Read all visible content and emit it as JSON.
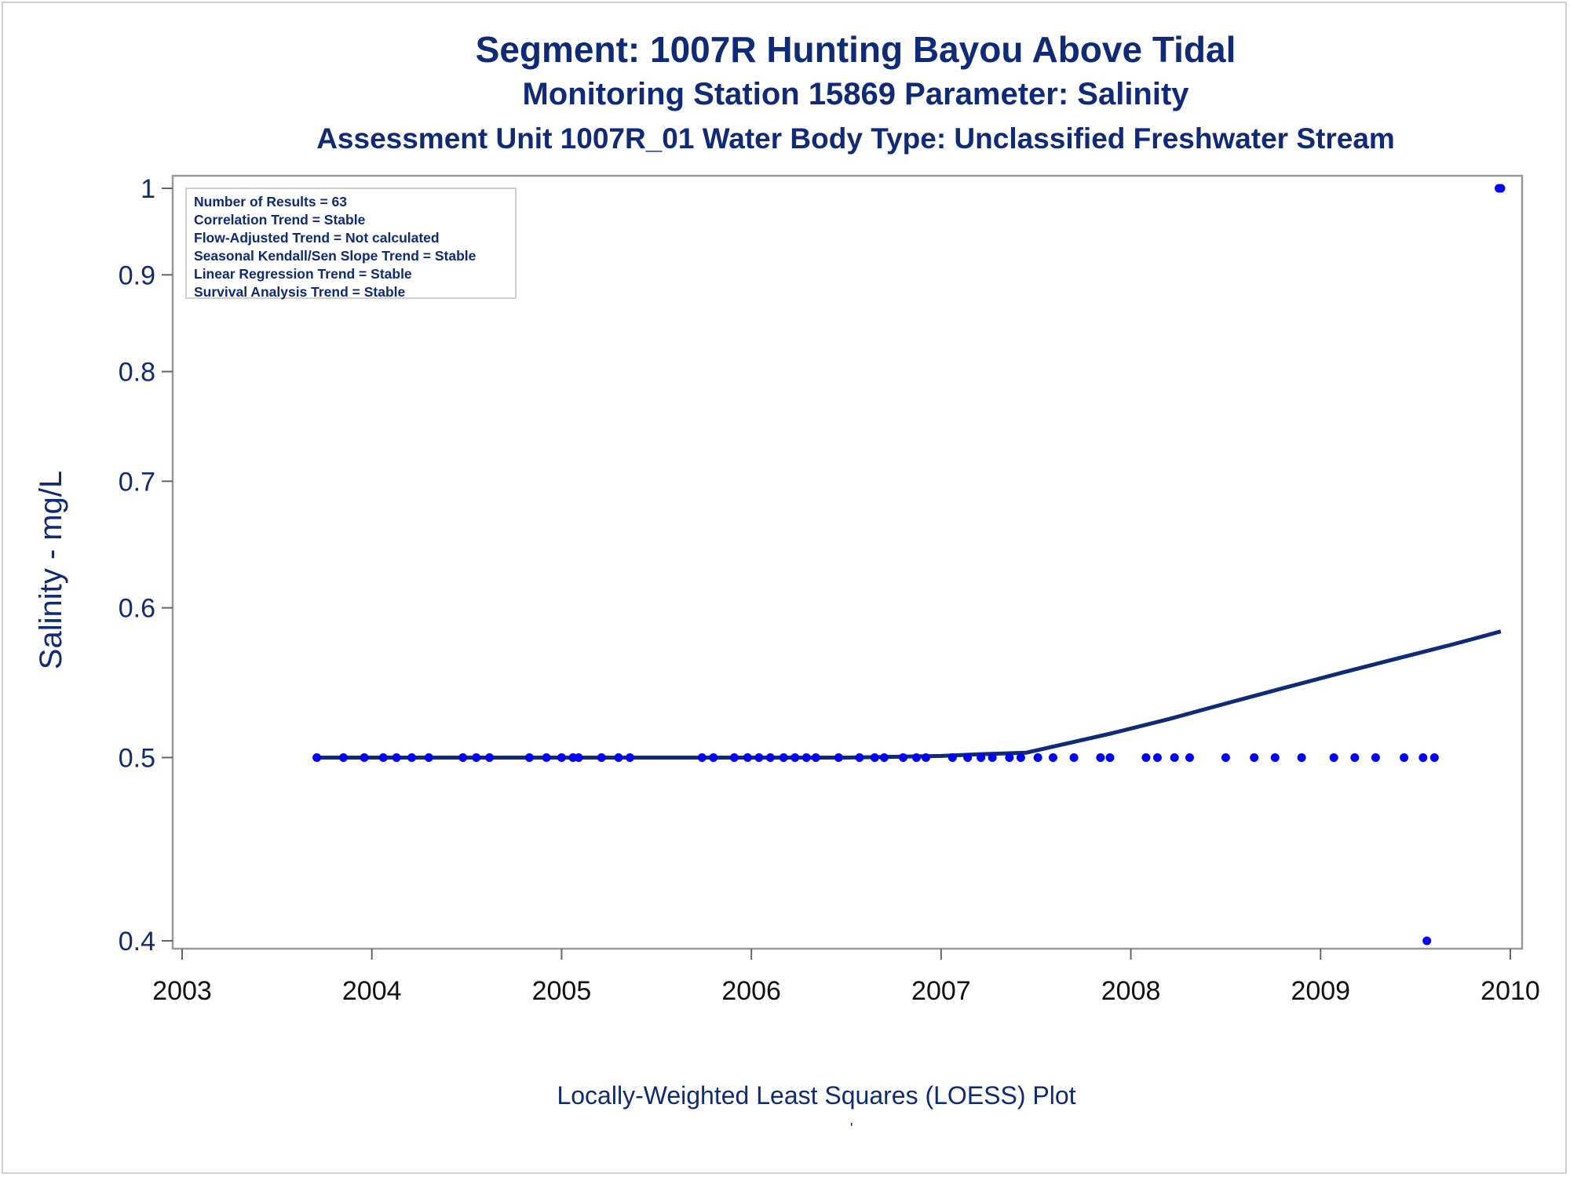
{
  "chart_data": {
    "type": "scatter",
    "title": "Segment: 1007R  Hunting Bayou Above Tidal",
    "subtitle": "Monitoring Station 15869 Parameter: Salinity",
    "subtitle2": "Assessment Unit 1007R_01   Water Body Type: Unclassified Freshwater Stream",
    "ylabel": "Salinity - mg/L",
    "footnote": "Locally-Weighted Least Squares (LOESS) Plot",
    "footnote_mark": "'",
    "y_scale": "log",
    "xlim": [
      2003,
      2010
    ],
    "ylim": [
      0.4,
      1
    ],
    "x_ticks": [
      "2003",
      "2004",
      "2005",
      "2006",
      "2007",
      "2008",
      "2009",
      "2010"
    ],
    "y_ticks": [
      "0.4",
      "0.5",
      "0.6",
      "0.7",
      "0.8",
      "0.9",
      "1"
    ],
    "legend_placement": "top-left",
    "stats": [
      "Number of Results = 63",
      "Correlation Trend = Stable",
      "Flow-Adjusted Trend = Not calculated",
      "Seasonal Kendall/Sen Slope Trend = Stable",
      "Linear Regression Trend = Stable",
      "Survival Analysis Trend = Stable"
    ],
    "series": [
      {
        "type": "scatter",
        "color": "#0000ff",
        "x": [
          2003.71,
          2003.85,
          2003.96,
          2004.06,
          2004.13,
          2004.21,
          2004.3,
          2004.48,
          2004.55,
          2004.62,
          2004.83,
          2004.92,
          2005.0,
          2005.06,
          2005.09,
          2005.21,
          2005.3,
          2005.36,
          2005.74,
          2005.8,
          2005.91,
          2005.98,
          2006.04,
          2006.1,
          2006.17,
          2006.23,
          2006.29,
          2006.34,
          2006.46,
          2006.57,
          2006.65,
          2006.7,
          2006.8,
          2006.87,
          2006.92,
          2007.06,
          2007.14,
          2007.21,
          2007.27,
          2007.36,
          2007.42,
          2007.51,
          2007.59,
          2007.7,
          2007.84,
          2007.89,
          2008.08,
          2008.14,
          2008.23,
          2008.31,
          2008.5,
          2008.65,
          2008.76,
          2008.9,
          2009.07,
          2009.18,
          2009.29,
          2009.44,
          2009.54,
          2009.56,
          2009.6,
          2009.94,
          2009.95
        ],
        "y": [
          0.5,
          0.5,
          0.5,
          0.5,
          0.5,
          0.5,
          0.5,
          0.5,
          0.5,
          0.5,
          0.5,
          0.5,
          0.5,
          0.5,
          0.5,
          0.5,
          0.5,
          0.5,
          0.5,
          0.5,
          0.5,
          0.5,
          0.5,
          0.5,
          0.5,
          0.5,
          0.5,
          0.5,
          0.5,
          0.5,
          0.5,
          0.5,
          0.5,
          0.5,
          0.5,
          0.5,
          0.5,
          0.5,
          0.5,
          0.5,
          0.5,
          0.5,
          0.5,
          0.5,
          0.5,
          0.5,
          0.5,
          0.5,
          0.5,
          0.5,
          0.5,
          0.5,
          0.5,
          0.5,
          0.5,
          0.5,
          0.5,
          0.5,
          0.5,
          0.4,
          0.5,
          1.0,
          1.0
        ]
      },
      {
        "type": "line",
        "color": "#0f2a78",
        "x": [
          2003.71,
          2004.5,
          2005.5,
          2006.5,
          2007.0,
          2007.2,
          2007.45,
          2007.6,
          2007.9,
          2008.2,
          2008.5,
          2008.8,
          2009.1,
          2009.4,
          2009.7,
          2009.95
        ],
        "y": [
          0.5,
          0.5,
          0.5,
          0.5,
          0.501,
          0.502,
          0.503,
          0.507,
          0.515,
          0.524,
          0.534,
          0.544,
          0.554,
          0.564,
          0.574,
          0.583
        ]
      }
    ]
  }
}
